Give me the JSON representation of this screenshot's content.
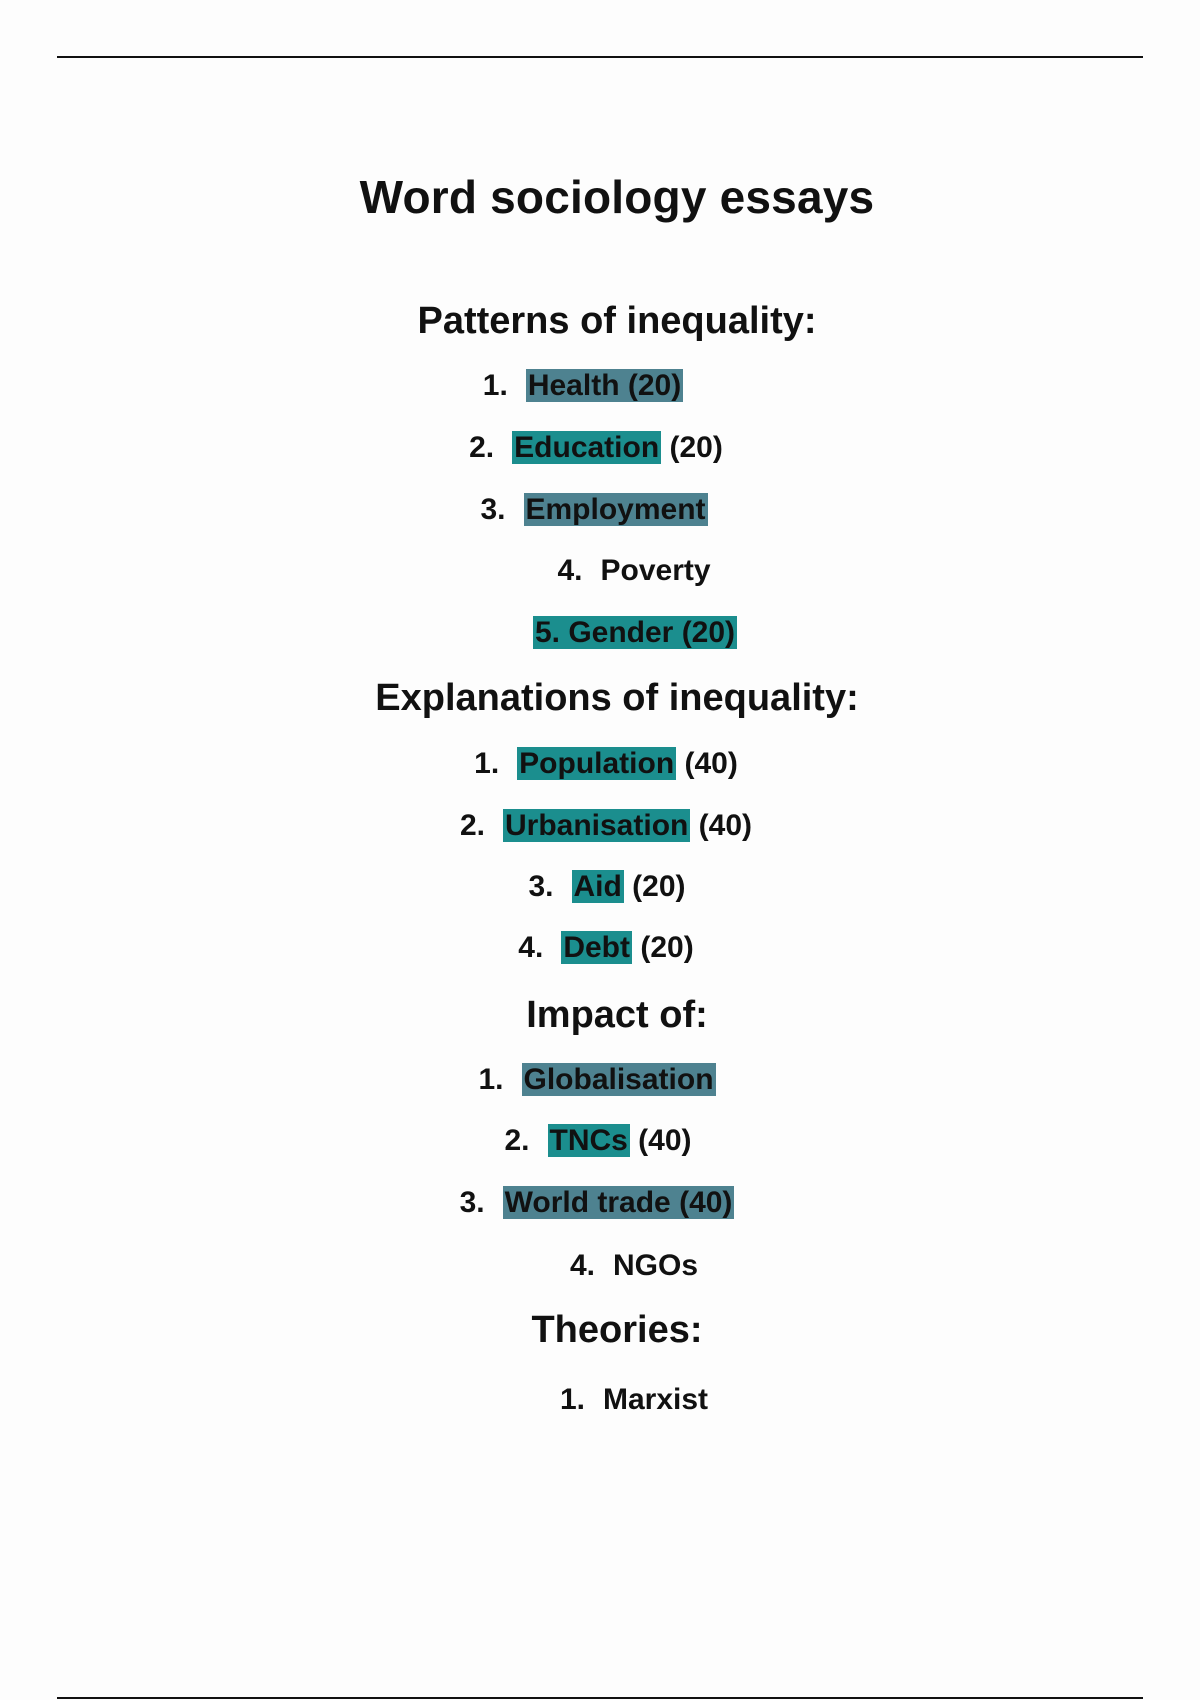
{
  "title": "Word sociology essays",
  "colors": {
    "highlight_slate": "#4e8290",
    "highlight_teal": "#1b8e8e"
  },
  "sections": [
    {
      "heading": "Patterns of inequality:",
      "items": [
        {
          "num": "1.",
          "highlighted": "Health (20)",
          "rest": "",
          "highlight": "slate"
        },
        {
          "num": "2.",
          "highlighted": "Education",
          "rest": " (20)",
          "highlight": "teal"
        },
        {
          "num": "3.",
          "highlighted": "Employment",
          "rest": "",
          "highlight": "slate"
        },
        {
          "num": "4.",
          "highlighted": "",
          "rest": "Poverty",
          "highlight": "none"
        },
        {
          "num": "5.",
          "highlighted": "Gender (20)",
          "rest": "",
          "highlight": "teal"
        }
      ]
    },
    {
      "heading": "Explanations of inequality:",
      "items": [
        {
          "num": "1.",
          "highlighted": "Population",
          "rest": " (40)",
          "highlight": "teal"
        },
        {
          "num": "2.",
          "highlighted": "Urbanisation",
          "rest": " (40)",
          "highlight": "teal"
        },
        {
          "num": "3.",
          "highlighted": "Aid",
          "rest": " (20)",
          "highlight": "teal"
        },
        {
          "num": "4.",
          "highlighted": "Debt",
          "rest": " (20)",
          "highlight": "teal"
        }
      ]
    },
    {
      "heading": "Impact of:",
      "items": [
        {
          "num": "1.",
          "highlighted": "Globalisation",
          "rest": "",
          "highlight": "slate"
        },
        {
          "num": "2.",
          "highlighted": "TNCs",
          "rest": " (40)",
          "highlight": "teal"
        },
        {
          "num": "3.",
          "highlighted": "World trade (40)",
          "rest": "",
          "highlight": "slate"
        },
        {
          "num": "4.",
          "highlighted": "",
          "rest": "NGOs",
          "highlight": "none"
        }
      ]
    },
    {
      "heading": "Theories:",
      "items": [
        {
          "num": "1.",
          "highlighted": "",
          "rest": "Marxist",
          "highlight": "none"
        }
      ]
    }
  ]
}
